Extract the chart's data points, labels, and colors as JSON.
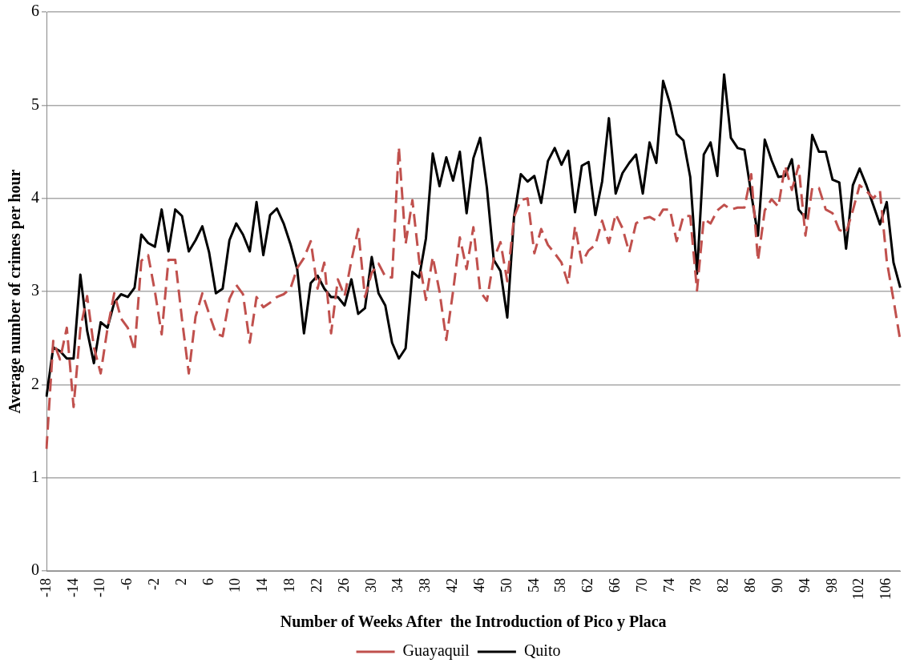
{
  "chart_data": {
    "type": "line",
    "xlabel": "Number of Weeks After  the Introduction of Pico y Placa",
    "ylabel": "Average number of crimes per hour",
    "categories": [
      "-18",
      null,
      null,
      null,
      "-14",
      null,
      null,
      null,
      "-10",
      null,
      null,
      null,
      "-6",
      null,
      null,
      null,
      "-2",
      null,
      null,
      null,
      "2",
      null,
      null,
      null,
      "6",
      null,
      null,
      null,
      "10",
      null,
      null,
      null,
      "14",
      null,
      null,
      null,
      "18",
      null,
      null,
      null,
      "22",
      null,
      null,
      null,
      "26",
      null,
      null,
      null,
      "30",
      null,
      null,
      null,
      "34",
      null,
      null,
      null,
      "38",
      null,
      null,
      null,
      "42",
      null,
      null,
      null,
      "46",
      null,
      null,
      null,
      "50",
      null,
      null,
      null,
      "54",
      null,
      null,
      null,
      "58",
      null,
      null,
      null,
      "62",
      null,
      null,
      null,
      "66",
      null,
      null,
      null,
      "70",
      null,
      null,
      null,
      "74",
      null,
      null,
      null,
      "78",
      null,
      null,
      null,
      "82",
      null,
      null,
      null,
      "86",
      null,
      null,
      null,
      "90",
      null,
      null,
      null,
      "94",
      null,
      null,
      null,
      "98",
      null,
      null,
      null,
      "102",
      null,
      null,
      null,
      "106",
      null,
      null
    ],
    "series": [
      {
        "name": "Guayaquil",
        "color": "#c0504d",
        "line_style": "dashed",
        "values": [
          1.31,
          2.47,
          2.27,
          2.61,
          1.76,
          2.6,
          2.95,
          2.4,
          2.12,
          2.6,
          2.98,
          2.71,
          2.61,
          2.36,
          3.33,
          3.39,
          3.0,
          2.54,
          3.34,
          3.34,
          2.7,
          2.12,
          2.73,
          2.98,
          2.76,
          2.55,
          2.52,
          2.92,
          3.07,
          2.97,
          2.45,
          2.94,
          2.83,
          2.88,
          2.94,
          2.97,
          3.03,
          3.25,
          3.36,
          3.54,
          3.03,
          3.31,
          2.55,
          3.13,
          2.95,
          3.33,
          3.67,
          2.94,
          3.2,
          3.3,
          3.16,
          3.15,
          4.55,
          3.51,
          3.98,
          3.33,
          2.91,
          3.37,
          3.0,
          2.48,
          3.0,
          3.58,
          3.24,
          3.69,
          3.0,
          2.9,
          3.35,
          3.53,
          3.11,
          3.8,
          3.98,
          4.0,
          3.41,
          3.67,
          3.5,
          3.41,
          3.31,
          3.08,
          3.7,
          3.31,
          3.44,
          3.5,
          3.76,
          3.52,
          3.83,
          3.68,
          3.42,
          3.73,
          3.78,
          3.8,
          3.76,
          3.88,
          3.88,
          3.54,
          3.81,
          3.81,
          3.01,
          3.78,
          3.73,
          3.87,
          3.93,
          3.88,
          3.9,
          3.9,
          4.26,
          3.33,
          3.87,
          3.99,
          3.91,
          4.35,
          4.09,
          4.35,
          3.6,
          4.11,
          4.11,
          3.88,
          3.84,
          3.66,
          3.63,
          3.87,
          4.14,
          4.08,
          4.0,
          4.08,
          3.33,
          2.91,
          2.47
        ]
      },
      {
        "name": "Quito",
        "color": "#000000",
        "line_style": "solid",
        "values": [
          1.87,
          2.4,
          2.36,
          2.28,
          2.28,
          3.18,
          2.58,
          2.23,
          2.67,
          2.61,
          2.88,
          2.97,
          2.94,
          3.04,
          3.61,
          3.52,
          3.48,
          3.88,
          3.43,
          3.88,
          3.81,
          3.43,
          3.55,
          3.7,
          3.42,
          2.98,
          3.03,
          3.55,
          3.73,
          3.61,
          3.43,
          3.96,
          3.39,
          3.82,
          3.89,
          3.73,
          3.51,
          3.24,
          2.55,
          3.09,
          3.17,
          3.03,
          2.94,
          2.94,
          2.85,
          3.13,
          2.76,
          2.82,
          3.37,
          2.98,
          2.85,
          2.45,
          2.28,
          2.39,
          3.21,
          3.15,
          3.57,
          4.48,
          4.13,
          4.44,
          4.19,
          4.5,
          3.84,
          4.43,
          4.65,
          4.11,
          3.34,
          3.22,
          2.72,
          3.8,
          4.26,
          4.18,
          4.24,
          3.95,
          4.4,
          4.54,
          4.36,
          4.51,
          3.85,
          4.35,
          4.39,
          3.82,
          4.18,
          4.86,
          4.05,
          4.27,
          4.38,
          4.47,
          4.05,
          4.6,
          4.38,
          5.26,
          5.02,
          4.69,
          4.62,
          4.23,
          3.19,
          4.47,
          4.6,
          4.24,
          5.33,
          4.65,
          4.54,
          4.52,
          4.05,
          3.6,
          4.63,
          4.41,
          4.23,
          4.24,
          4.42,
          3.88,
          3.79,
          4.68,
          4.5,
          4.5,
          4.2,
          4.17,
          3.46,
          4.14,
          4.32,
          4.14,
          3.93,
          3.72,
          3.96,
          3.31,
          3.04
        ]
      }
    ],
    "ylim": [
      0,
      6
    ],
    "yticks": [
      0,
      1,
      2,
      3,
      4,
      5,
      6
    ],
    "grid": "y",
    "legend": "bottom",
    "marker": "none"
  }
}
